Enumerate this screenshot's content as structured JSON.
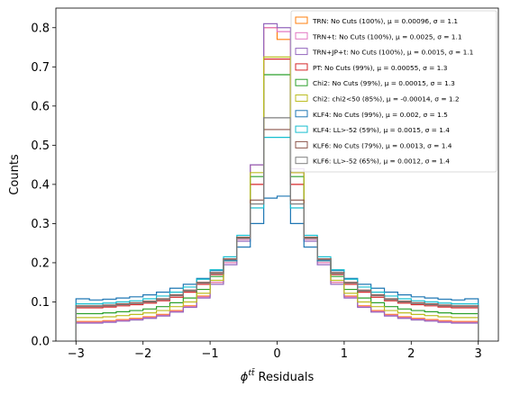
{
  "chart_data": {
    "type": "step-histogram",
    "xlabel_main": "ϕ",
    "xlabel_sup": "tt̄",
    "xlabel_rest": " Residuals",
    "ylabel": "Counts",
    "xlim": [
      -3.3,
      3.3
    ],
    "ylim": [
      0,
      0.85
    ],
    "xticks": [
      -3,
      -2,
      -1,
      0,
      1,
      2,
      3
    ],
    "xtick_labels": [
      "−3",
      "−2",
      "−1",
      "0",
      "1",
      "2",
      "3"
    ],
    "yticks": [
      0.0,
      0.1,
      0.2,
      0.3,
      0.4,
      0.5,
      0.6,
      0.7,
      0.8
    ],
    "ytick_labels": [
      "0.0",
      "0.1",
      "0.2",
      "0.3",
      "0.4",
      "0.5",
      "0.6",
      "0.7",
      "0.8"
    ],
    "bin_edges": [
      -3.0,
      -2.8,
      -2.6,
      -2.4,
      -2.2,
      -2.0,
      -1.8,
      -1.6,
      -1.4,
      -1.2,
      -1.0,
      -0.8,
      -0.6,
      -0.4,
      -0.2,
      0.0,
      0.2,
      0.4,
      0.6,
      0.8,
      1.0,
      1.2,
      1.4,
      1.6,
      1.8,
      2.0,
      2.2,
      2.4,
      2.6,
      2.8,
      3.0
    ],
    "legend_position": "top-right",
    "series": [
      {
        "name": "TRN: No Cuts (100%), μ = 0.00096, σ = 1.1",
        "color": "#ff7f0e",
        "values": [
          0.05,
          0.05,
          0.052,
          0.055,
          0.058,
          0.062,
          0.068,
          0.078,
          0.09,
          0.115,
          0.15,
          0.2,
          0.26,
          0.45,
          0.8,
          0.77,
          0.43,
          0.26,
          0.2,
          0.15,
          0.115,
          0.09,
          0.078,
          0.068,
          0.062,
          0.058,
          0.055,
          0.052,
          0.05,
          0.05
        ]
      },
      {
        "name": "TRN+t: No Cuts (100%), μ = 0.0025, σ = 1.1",
        "color": "#e377c2",
        "values": [
          0.048,
          0.048,
          0.05,
          0.053,
          0.056,
          0.06,
          0.066,
          0.076,
          0.088,
          0.113,
          0.15,
          0.2,
          0.26,
          0.45,
          0.8,
          0.79,
          0.44,
          0.26,
          0.2,
          0.15,
          0.113,
          0.088,
          0.076,
          0.066,
          0.06,
          0.056,
          0.053,
          0.05,
          0.048,
          0.048
        ]
      },
      {
        "name": "TRN+JP+t: No Cuts (100%), μ = 0.0015, σ = 1.1",
        "color": "#9467bd",
        "values": [
          0.046,
          0.046,
          0.048,
          0.051,
          0.054,
          0.058,
          0.064,
          0.074,
          0.086,
          0.11,
          0.145,
          0.195,
          0.255,
          0.45,
          0.81,
          0.8,
          0.44,
          0.255,
          0.195,
          0.145,
          0.11,
          0.086,
          0.074,
          0.064,
          0.058,
          0.054,
          0.051,
          0.048,
          0.046,
          0.046
        ]
      },
      {
        "name": "PT: No Cuts (99%), μ = 0.00055, σ = 1.3",
        "color": "#d62728",
        "values": [
          0.085,
          0.085,
          0.087,
          0.09,
          0.093,
          0.097,
          0.103,
          0.112,
          0.125,
          0.145,
          0.17,
          0.21,
          0.265,
          0.4,
          0.72,
          0.72,
          0.4,
          0.265,
          0.21,
          0.17,
          0.145,
          0.125,
          0.112,
          0.103,
          0.097,
          0.093,
          0.09,
          0.087,
          0.085,
          0.085
        ]
      },
      {
        "name": "Chi2: No Cuts (99%), μ = 0.00015, σ = 1.3",
        "color": "#2ca02c",
        "values": [
          0.07,
          0.07,
          0.072,
          0.075,
          0.078,
          0.082,
          0.088,
          0.098,
          0.11,
          0.132,
          0.165,
          0.21,
          0.265,
          0.42,
          0.68,
          0.68,
          0.42,
          0.265,
          0.21,
          0.165,
          0.132,
          0.11,
          0.098,
          0.088,
          0.082,
          0.078,
          0.075,
          0.072,
          0.07,
          0.07
        ]
      },
      {
        "name": "Chi2: chi2<50 (85%), μ = -0.00014, σ = 1.2",
        "color": "#bcbd22",
        "values": [
          0.06,
          0.06,
          0.062,
          0.065,
          0.068,
          0.072,
          0.078,
          0.088,
          0.1,
          0.122,
          0.155,
          0.205,
          0.265,
          0.43,
          0.725,
          0.725,
          0.43,
          0.265,
          0.205,
          0.155,
          0.122,
          0.1,
          0.088,
          0.078,
          0.072,
          0.068,
          0.065,
          0.062,
          0.06,
          0.06
        ]
      },
      {
        "name": "KLF4: No Cuts (99%), μ = 0.002, σ = 1.5",
        "color": "#1f77b4",
        "values": [
          0.108,
          0.105,
          0.107,
          0.11,
          0.113,
          0.118,
          0.125,
          0.135,
          0.145,
          0.16,
          0.18,
          0.205,
          0.24,
          0.3,
          0.365,
          0.37,
          0.3,
          0.24,
          0.205,
          0.18,
          0.16,
          0.145,
          0.135,
          0.125,
          0.118,
          0.113,
          0.11,
          0.107,
          0.105,
          0.108
        ]
      },
      {
        "name": "KLF4: LL>-52 (59%), μ = 0.0015, σ = 1.4",
        "color": "#17becf",
        "values": [
          0.095,
          0.095,
          0.097,
          0.1,
          0.103,
          0.108,
          0.115,
          0.125,
          0.138,
          0.158,
          0.182,
          0.215,
          0.27,
          0.34,
          0.52,
          0.52,
          0.34,
          0.27,
          0.215,
          0.182,
          0.158,
          0.138,
          0.125,
          0.115,
          0.108,
          0.103,
          0.1,
          0.097,
          0.095,
          0.095
        ]
      },
      {
        "name": "KLF6: No Cuts (79%), μ = 0.0013, σ = 1.4",
        "color": "#8c564b",
        "values": [
          0.09,
          0.09,
          0.092,
          0.095,
          0.098,
          0.102,
          0.108,
          0.118,
          0.13,
          0.15,
          0.175,
          0.21,
          0.265,
          0.36,
          0.54,
          0.54,
          0.36,
          0.265,
          0.21,
          0.175,
          0.15,
          0.13,
          0.118,
          0.108,
          0.102,
          0.098,
          0.095,
          0.092,
          0.09,
          0.09
        ]
      },
      {
        "name": "KLF6: LL>-52 (65%), μ = 0.0012, σ = 1.4",
        "color": "#7f7f7f",
        "values": [
          0.088,
          0.088,
          0.09,
          0.093,
          0.096,
          0.1,
          0.106,
          0.116,
          0.128,
          0.148,
          0.172,
          0.208,
          0.262,
          0.35,
          0.57,
          0.57,
          0.35,
          0.262,
          0.208,
          0.172,
          0.148,
          0.128,
          0.116,
          0.106,
          0.1,
          0.096,
          0.093,
          0.09,
          0.088,
          0.088
        ]
      }
    ]
  }
}
